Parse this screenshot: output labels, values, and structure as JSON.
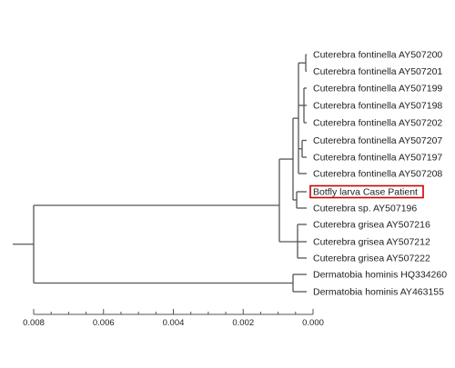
{
  "tree": {
    "highlight_color": "#cc0000",
    "branch_color": "#555555",
    "leaves": [
      {
        "id": "l1",
        "label": "Cuterebra fontinella AY507200"
      },
      {
        "id": "l2",
        "label": "Cuterebra fontinella AY507201"
      },
      {
        "id": "l3",
        "label": "Cuterebra fontinella AY507199"
      },
      {
        "id": "l4",
        "label": "Cuterebra fontinella AY507198"
      },
      {
        "id": "l5",
        "label": "Cuterebra fontinella AY507202"
      },
      {
        "id": "l6",
        "label": "Cuterebra fontinella AY507207"
      },
      {
        "id": "l7",
        "label": "Cuterebra fontinella AY507197"
      },
      {
        "id": "l8",
        "label": "Cuterebra fontinella AY507208"
      },
      {
        "id": "l9",
        "label": "Botfly larva Case Patient",
        "highlighted": true
      },
      {
        "id": "l10",
        "label": "Cuterebra sp. AY507196"
      },
      {
        "id": "l11",
        "label": "Cuterebra grisea AY507216"
      },
      {
        "id": "l12",
        "label": "Cuterebra grisea AY507212"
      },
      {
        "id": "l13",
        "label": "Cuterebra grisea AY507222"
      },
      {
        "id": "l14",
        "label": "Dermatobia hominis HQ334260"
      },
      {
        "id": "l15",
        "label": "Dermatobia hominis AY463155"
      }
    ],
    "scale_axis": {
      "range": [
        0.008,
        0.0
      ],
      "ticks": [
        "0.008",
        "0.006",
        "0.004",
        "0.002",
        "0.000"
      ]
    }
  }
}
